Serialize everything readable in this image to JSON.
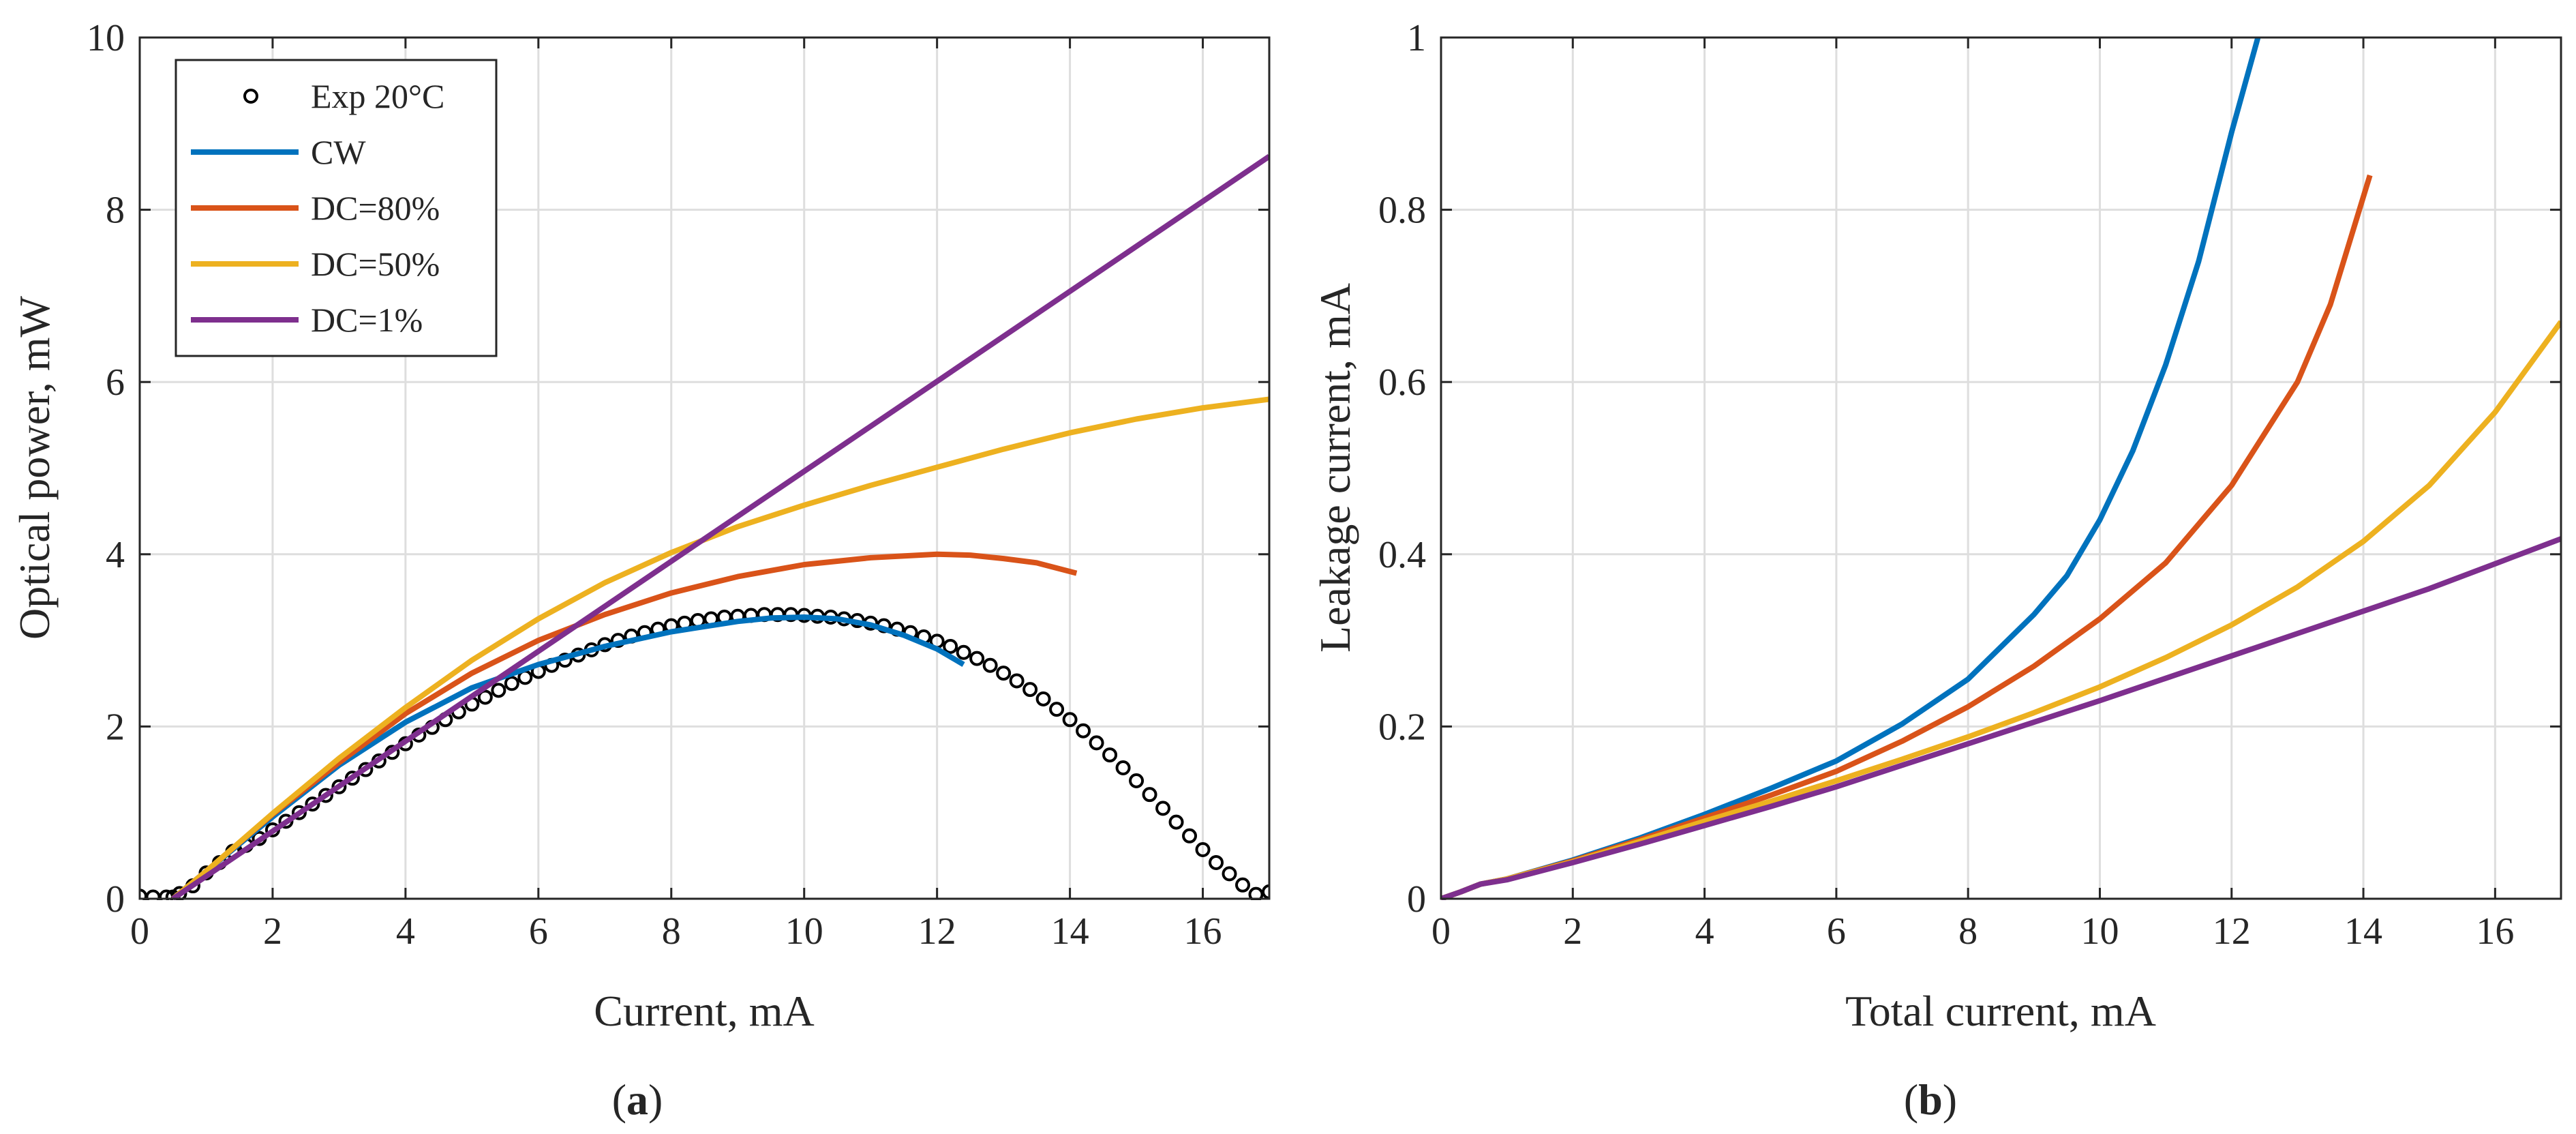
{
  "chart_data": [
    {
      "id": "a",
      "type": "line",
      "panel_label": "a",
      "xlabel": "Current, mA",
      "ylabel": "Optical power, mW",
      "xlim": [
        0,
        17
      ],
      "ylim": [
        0,
        10
      ],
      "xticks": [
        0,
        2,
        4,
        6,
        8,
        10,
        12,
        14,
        16
      ],
      "yticks": [
        0,
        2,
        4,
        6,
        8,
        10
      ],
      "grid": true,
      "legend_position": "top-left",
      "series": [
        {
          "name": "Exp 20°C",
          "style": "markers",
          "color": "#000000",
          "x": [
            0,
            0.2,
            0.4,
            0.5,
            0.6,
            0.8,
            1.0,
            1.2,
            1.4,
            1.6,
            1.8,
            2.0,
            2.2,
            2.4,
            2.6,
            2.8,
            3.0,
            3.2,
            3.4,
            3.6,
            3.8,
            4.0,
            4.2,
            4.4,
            4.6,
            4.8,
            5.0,
            5.2,
            5.4,
            5.6,
            5.8,
            6.0,
            6.2,
            6.4,
            6.6,
            6.8,
            7.0,
            7.2,
            7.4,
            7.6,
            7.8,
            8.0,
            8.2,
            8.4,
            8.6,
            8.8,
            9.0,
            9.2,
            9.4,
            9.6,
            9.8,
            10.0,
            10.2,
            10.4,
            10.6,
            10.8,
            11.0,
            11.2,
            11.4,
            11.6,
            11.8,
            12.0,
            12.2,
            12.4,
            12.6,
            12.8,
            13.0,
            13.2,
            13.4,
            13.6,
            13.8,
            14.0,
            14.2,
            14.4,
            14.6,
            14.8,
            15.0,
            15.2,
            15.4,
            15.6,
            15.8,
            16.0,
            16.2,
            16.4,
            16.6,
            16.8,
            17.0
          ],
          "y": [
            0.03,
            0.02,
            0.02,
            0.02,
            0.06,
            0.15,
            0.3,
            0.42,
            0.55,
            0.62,
            0.7,
            0.8,
            0.9,
            1.0,
            1.1,
            1.2,
            1.3,
            1.4,
            1.5,
            1.6,
            1.7,
            1.8,
            1.9,
            1.99,
            2.08,
            2.17,
            2.26,
            2.34,
            2.42,
            2.5,
            2.57,
            2.64,
            2.71,
            2.77,
            2.83,
            2.89,
            2.95,
            3.0,
            3.05,
            3.09,
            3.13,
            3.17,
            3.2,
            3.23,
            3.25,
            3.27,
            3.28,
            3.29,
            3.3,
            3.3,
            3.3,
            3.29,
            3.28,
            3.27,
            3.25,
            3.23,
            3.2,
            3.17,
            3.13,
            3.09,
            3.04,
            2.99,
            2.93,
            2.86,
            2.79,
            2.71,
            2.62,
            2.53,
            2.43,
            2.32,
            2.2,
            2.08,
            1.95,
            1.81,
            1.67,
            1.52,
            1.37,
            1.21,
            1.05,
            0.89,
            0.73,
            0.57,
            0.42,
            0.29,
            0.16,
            0.05,
            0.08
          ]
        },
        {
          "name": "CW",
          "style": "line",
          "color": "#0072bd",
          "x": [
            0.5,
            1,
            2,
            3,
            4,
            5,
            6,
            7,
            8,
            9,
            9.5,
            10,
            10.5,
            11,
            11.5,
            12,
            12.4
          ],
          "y": [
            0,
            0.32,
            0.95,
            1.55,
            2.05,
            2.45,
            2.72,
            2.93,
            3.1,
            3.22,
            3.26,
            3.27,
            3.25,
            3.18,
            3.06,
            2.9,
            2.72
          ]
        },
        {
          "name": "DC=80%",
          "style": "line",
          "color": "#d95319",
          "x": [
            0.5,
            1,
            2,
            3,
            4,
            5,
            6,
            7,
            8,
            9,
            10,
            11,
            12,
            12.5,
            13,
            13.5,
            14.1
          ],
          "y": [
            0,
            0.32,
            0.98,
            1.58,
            2.15,
            2.62,
            3.0,
            3.3,
            3.55,
            3.74,
            3.88,
            3.96,
            4.0,
            3.99,
            3.95,
            3.9,
            3.78
          ]
        },
        {
          "name": "DC=50%",
          "style": "line",
          "color": "#edb120",
          "x": [
            0.5,
            1,
            2,
            3,
            4,
            5,
            6,
            7,
            8,
            9,
            10,
            11,
            12,
            13,
            14,
            15,
            16,
            17
          ],
          "y": [
            0,
            0.32,
            0.99,
            1.63,
            2.22,
            2.77,
            3.25,
            3.67,
            4.02,
            4.32,
            4.57,
            4.8,
            5.01,
            5.22,
            5.41,
            5.57,
            5.7,
            5.8
          ]
        },
        {
          "name": "DC=1%",
          "style": "line",
          "color": "#7e2f8e",
          "x": [
            0.5,
            17
          ],
          "y": [
            0,
            8.62
          ]
        }
      ]
    },
    {
      "id": "b",
      "type": "line",
      "panel_label": "b",
      "xlabel": "Total current, mA",
      "ylabel": "Leakage current, mA",
      "xlim": [
        0,
        17
      ],
      "ylim": [
        0,
        1
      ],
      "xticks": [
        0,
        2,
        4,
        6,
        8,
        10,
        12,
        14,
        16
      ],
      "yticks": [
        0,
        0.2,
        0.4,
        0.6,
        0.8,
        1
      ],
      "grid": true,
      "series": [
        {
          "name": "CW",
          "style": "line",
          "color": "#0072bd",
          "x": [
            0,
            0.3,
            0.6,
            1,
            2,
            3,
            4,
            5,
            6,
            7,
            8,
            9,
            9.5,
            10,
            10.5,
            11,
            11.5,
            12,
            12.4
          ],
          "y": [
            0,
            0.008,
            0.017,
            0.023,
            0.045,
            0.07,
            0.098,
            0.128,
            0.16,
            0.203,
            0.255,
            0.33,
            0.375,
            0.44,
            0.52,
            0.62,
            0.74,
            0.89,
            1.0
          ]
        },
        {
          "name": "DC=80%",
          "style": "line",
          "color": "#d95319",
          "x": [
            0,
            0.3,
            0.6,
            1,
            2,
            3,
            4,
            5,
            6,
            7,
            8,
            9,
            10,
            11,
            12,
            13,
            13.5,
            14.1
          ],
          "y": [
            0,
            0.008,
            0.017,
            0.023,
            0.044,
            0.068,
            0.094,
            0.12,
            0.148,
            0.183,
            0.223,
            0.27,
            0.325,
            0.39,
            0.48,
            0.6,
            0.69,
            0.84
          ]
        },
        {
          "name": "DC=50%",
          "style": "line",
          "color": "#edb120",
          "x": [
            0,
            0.3,
            0.6,
            1,
            2,
            3,
            4,
            5,
            6,
            7,
            8,
            9,
            10,
            11,
            12,
            13,
            14,
            15,
            16,
            17
          ],
          "y": [
            0,
            0.008,
            0.017,
            0.023,
            0.043,
            0.066,
            0.09,
            0.113,
            0.137,
            0.162,
            0.188,
            0.216,
            0.246,
            0.28,
            0.318,
            0.362,
            0.415,
            0.48,
            0.565,
            0.67
          ]
        },
        {
          "name": "DC=1%",
          "style": "line",
          "color": "#7e2f8e",
          "x": [
            0,
            0.3,
            0.6,
            1,
            2,
            3,
            4,
            5,
            6,
            7,
            8,
            9,
            10,
            11,
            12,
            13,
            14,
            15,
            16,
            17
          ],
          "y": [
            0,
            0.008,
            0.017,
            0.022,
            0.042,
            0.063,
            0.085,
            0.107,
            0.13,
            0.155,
            0.18,
            0.205,
            0.23,
            0.256,
            0.282,
            0.308,
            0.334,
            0.36,
            0.389,
            0.418
          ]
        }
      ]
    }
  ]
}
